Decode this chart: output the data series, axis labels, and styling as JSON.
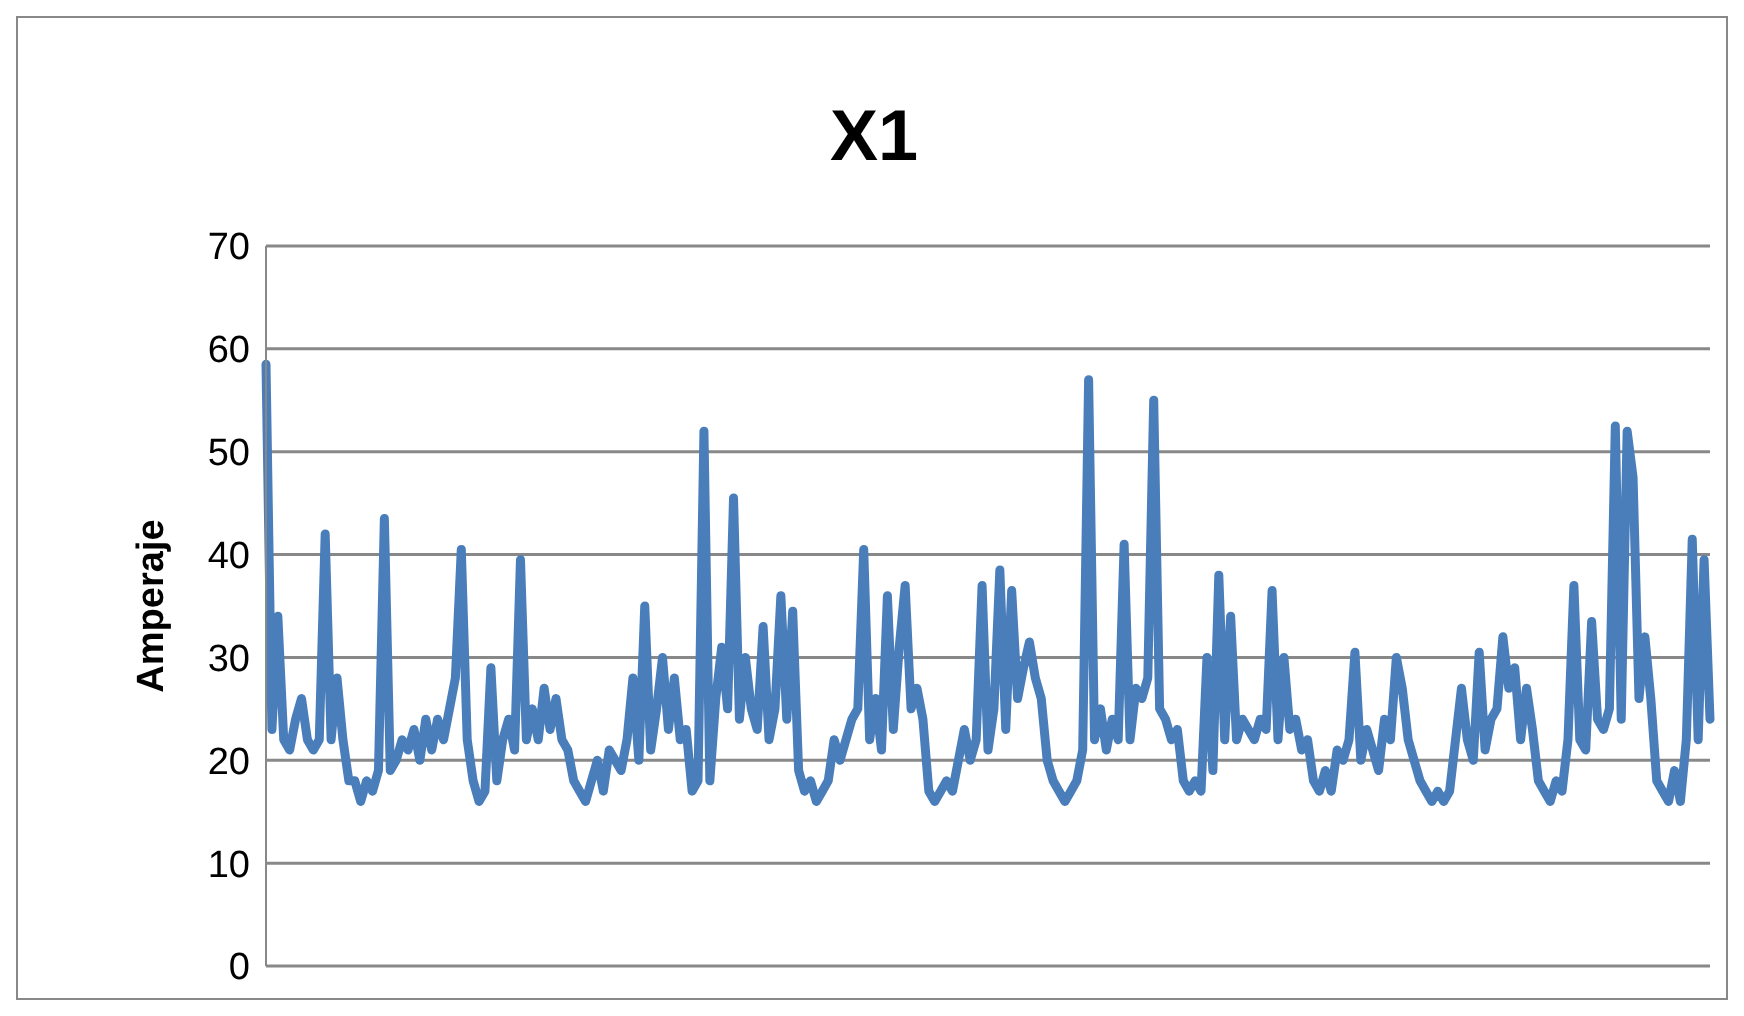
{
  "chart_data": {
    "type": "line",
    "title": "X1",
    "ylabel": "Amperaje",
    "categories": [
      null,
      null,
      null,
      null,
      null,
      null,
      null,
      null,
      null,
      null,
      null,
      null,
      null,
      null,
      null,
      null,
      null,
      null,
      null,
      null,
      null,
      null,
      null,
      null,
      null,
      null,
      null,
      null,
      null,
      null,
      null,
      null,
      null,
      null,
      null,
      null,
      null,
      null,
      null,
      null,
      null,
      null,
      null,
      null,
      null,
      null,
      null,
      null,
      null,
      null,
      null,
      null,
      null,
      null,
      null,
      null,
      null,
      null,
      null,
      null,
      null,
      null,
      null,
      null,
      null,
      null,
      null,
      null,
      null,
      null,
      null,
      null,
      null,
      null,
      null,
      null,
      null,
      null,
      null,
      null,
      null,
      null,
      null,
      null,
      null,
      null,
      null,
      null,
      null,
      null,
      null,
      null,
      null,
      null,
      null,
      null,
      null,
      null,
      null,
      null,
      null,
      null,
      null,
      null,
      null,
      null,
      null,
      null,
      null,
      null,
      null,
      null,
      null,
      null,
      null,
      null,
      null,
      null,
      null,
      null,
      null,
      null,
      null,
      null,
      null,
      null,
      null,
      null,
      null,
      null,
      null,
      null,
      null,
      null,
      null,
      null,
      null,
      null,
      null,
      null,
      null,
      null,
      null,
      null,
      null,
      null,
      null,
      null,
      null,
      null,
      null,
      null,
      null,
      null,
      null,
      null,
      null,
      null,
      null,
      null,
      null,
      null,
      null,
      null,
      null,
      null,
      null,
      null,
      null,
      null,
      null,
      null,
      null,
      null,
      null,
      null,
      null,
      null,
      null,
      null,
      null,
      null,
      null,
      null,
      null,
      null,
      null,
      null,
      null,
      null,
      null,
      null,
      null,
      null,
      null,
      null,
      null,
      null,
      null,
      null,
      null,
      null,
      null,
      null,
      null,
      null,
      null,
      null,
      null,
      null,
      null,
      null,
      null,
      null,
      null,
      null,
      null,
      null,
      null,
      null,
      null,
      null,
      null,
      null,
      null,
      null,
      null,
      null,
      null,
      null,
      null,
      null,
      null,
      null,
      null,
      null,
      null,
      null,
      null,
      null,
      null,
      null,
      null,
      null,
      null
    ],
    "series": [
      {
        "color": "#4a7ebb",
        "values": [
          58.5,
          23,
          34,
          22,
          21,
          24,
          26,
          22,
          21,
          22,
          42,
          22,
          28,
          22,
          18,
          18,
          16,
          18,
          17,
          19,
          43.5,
          19,
          20,
          22,
          21,
          23,
          20,
          24,
          21,
          24,
          22,
          25,
          28,
          40.5,
          22,
          18,
          16,
          17,
          29,
          18,
          22,
          24,
          21,
          39.5,
          22,
          25,
          22,
          27,
          23,
          26,
          22,
          21,
          18,
          17,
          16,
          18,
          20,
          17,
          21,
          20,
          19,
          22,
          28,
          20,
          35,
          21,
          25,
          30,
          23,
          28,
          22,
          23,
          17,
          18,
          52,
          18,
          26,
          31,
          25,
          45.5,
          24,
          30,
          25,
          23,
          33,
          22,
          25,
          36,
          24,
          34.5,
          19,
          17,
          18,
          16,
          17,
          18,
          22,
          20,
          22,
          24,
          25,
          40.5,
          22,
          26,
          21,
          36,
          23,
          31,
          37,
          25,
          27,
          24,
          17,
          16,
          17,
          18,
          17,
          20,
          23,
          20,
          22,
          37,
          21,
          25,
          38.5,
          23,
          36.5,
          26,
          29,
          31.5,
          28,
          26,
          20,
          18,
          17,
          16,
          17,
          18,
          21,
          57,
          22,
          25,
          21,
          24,
          22,
          41,
          22,
          27,
          26,
          28,
          55,
          25,
          24,
          22,
          23,
          18,
          17,
          18,
          17,
          30,
          19,
          38,
          22,
          34,
          22,
          24,
          23,
          22,
          24,
          23,
          36.5,
          22,
          30,
          23,
          24,
          21,
          22,
          18,
          17,
          19,
          17,
          21,
          20,
          22,
          30.5,
          20,
          23,
          21,
          19,
          24,
          22,
          30,
          27,
          22,
          20,
          18,
          17,
          16,
          17,
          16,
          17,
          22,
          27,
          22,
          20,
          30.5,
          21,
          24,
          25,
          32,
          27,
          29,
          22,
          27,
          23,
          18,
          17,
          16,
          18,
          17,
          22,
          37,
          22,
          21,
          33.5,
          24,
          23,
          25,
          52.5,
          24,
          52,
          47.5,
          26,
          32,
          26,
          18,
          17,
          16,
          19,
          16,
          22,
          41.5,
          22,
          39.5,
          24
        ]
      }
    ],
    "ylim": [
      0,
      70
    ],
    "yticks": [
      0,
      10,
      20,
      30,
      40,
      50,
      60,
      70
    ],
    "grid": "y",
    "legend": false,
    "marker": "none",
    "line_style": "solid",
    "tick_labels": "y"
  }
}
